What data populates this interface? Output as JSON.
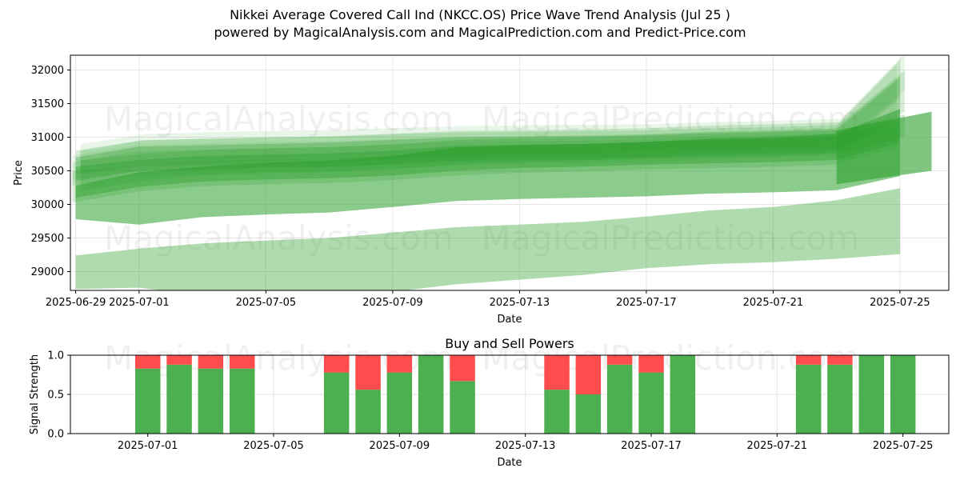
{
  "title": "Nikkei Average Covered Call Ind (NKCC.OS) Price Wave Trend Analysis (Jul 25 )",
  "subtitle": "powered by MagicalAnalysis.com and MagicalPrediction.com and Predict-Price.com",
  "watermarks": [
    "MagicalAnalysis.com",
    "MagicalPrediction.com"
  ],
  "colors": {
    "band": "#2ca02c",
    "buy": "#4caf50",
    "sell": "#ff4d4d"
  },
  "chart_data": [
    {
      "type": "area",
      "title": "",
      "xlabel": "Date",
      "ylabel": "Price",
      "ylim": [
        28720,
        32220
      ],
      "xlim": [
        "2025-06-28T20:00",
        "2025-07-26T13:00"
      ],
      "x_ticks": [
        "2025-06-29",
        "2025-07-01",
        "2025-07-05",
        "2025-07-09",
        "2025-07-13",
        "2025-07-17",
        "2025-07-21",
        "2025-07-25"
      ],
      "y_ticks": [
        29000,
        29500,
        30000,
        30500,
        31000,
        31500,
        32000
      ],
      "grid": true,
      "dates": [
        "2025-06-29",
        "2025-07-01",
        "2025-07-03",
        "2025-07-05",
        "2025-07-07",
        "2025-07-09",
        "2025-07-11",
        "2025-07-13",
        "2025-07-15",
        "2025-07-17",
        "2025-07-19",
        "2025-07-21",
        "2025-07-23",
        "2025-07-25"
      ],
      "bands": [
        {
          "lower": [
            28740,
            28760,
            28640,
            28600,
            28600,
            28700,
            28810,
            28880,
            28950,
            29050,
            29110,
            29140,
            29190,
            29260
          ],
          "upper": [
            29240,
            29340,
            29420,
            29460,
            29500,
            29580,
            29660,
            29700,
            29740,
            29820,
            29910,
            29960,
            30060,
            30240
          ],
          "opacity": 0.38
        },
        {
          "lower": [
            29780,
            29700,
            29810,
            29850,
            29880,
            29960,
            30050,
            30080,
            30100,
            30120,
            30160,
            30180,
            30210,
            30420
          ],
          "upper": [
            30280,
            30480,
            30560,
            30620,
            30650,
            30720,
            30850,
            30880,
            30900,
            30930,
            30980,
            31000,
            31050,
            31420
          ],
          "opacity": 0.55
        },
        {
          "lower": [
            30100,
            30260,
            30340,
            30370,
            30390,
            30430,
            30500,
            30540,
            30560,
            30590,
            30610,
            30630,
            30660,
            30920
          ],
          "upper": [
            30560,
            30660,
            30720,
            30740,
            30760,
            30800,
            30870,
            30890,
            30900,
            30930,
            30960,
            30980,
            31010,
            31240
          ],
          "opacity": 0.4
        },
        {
          "lower": [
            30350,
            30500,
            30520,
            30550,
            30560,
            30600,
            30650,
            30670,
            30680,
            30700,
            30740,
            30760,
            30790,
            31280
          ],
          "upper": [
            30700,
            30860,
            30880,
            30900,
            30920,
            30960,
            31000,
            31010,
            31020,
            31040,
            31080,
            31100,
            31130,
            31900
          ],
          "opacity": 0.3
        },
        {
          "lower": [
            30450,
            30560,
            30580,
            30600,
            30620,
            30660,
            30700,
            30710,
            30720,
            30740,
            30780,
            30800,
            30830,
            31600
          ],
          "upper": [
            30800,
            30950,
            30980,
            31000,
            31010,
            31040,
            31070,
            31080,
            31090,
            31100,
            31130,
            31150,
            31180,
            32150
          ],
          "opacity": 0.18
        }
      ],
      "tail_band": {
        "dates": [
          "2025-07-23",
          "2025-07-26"
        ],
        "lower": [
          30300,
          30500
        ],
        "upper": [
          31100,
          31380
        ],
        "opacity": 0.6
      }
    },
    {
      "type": "bar",
      "title": "Buy and Sell Powers",
      "xlabel": "Date",
      "ylabel": "Signal Strength",
      "ylim": [
        0,
        1
      ],
      "x_ticks": [
        "2025-07-01",
        "2025-07-05",
        "2025-07-09",
        "2025-07-13",
        "2025-07-17",
        "2025-07-21",
        "2025-07-25"
      ],
      "y_ticks": [
        0.0,
        0.5,
        1.0
      ],
      "grid": true,
      "series": [
        {
          "name": "Buy",
          "points": [
            [
              "2025-07-01",
              0.83
            ],
            [
              "2025-07-02",
              0.88
            ],
            [
              "2025-07-03",
              0.83
            ],
            [
              "2025-07-04",
              0.83
            ],
            [
              "2025-07-07",
              0.78
            ],
            [
              "2025-07-08",
              0.56
            ],
            [
              "2025-07-09",
              0.78
            ],
            [
              "2025-07-10",
              1.0
            ],
            [
              "2025-07-11",
              0.67
            ],
            [
              "2025-07-14",
              0.56
            ],
            [
              "2025-07-15",
              0.5
            ],
            [
              "2025-07-16",
              0.88
            ],
            [
              "2025-07-17",
              0.78
            ],
            [
              "2025-07-18",
              1.0
            ],
            [
              "2025-07-22",
              0.88
            ],
            [
              "2025-07-23",
              0.88
            ],
            [
              "2025-07-24",
              1.0
            ],
            [
              "2025-07-25",
              1.0
            ]
          ]
        },
        {
          "name": "Sell",
          "points": [
            [
              "2025-07-01",
              0.17
            ],
            [
              "2025-07-02",
              0.12
            ],
            [
              "2025-07-03",
              0.17
            ],
            [
              "2025-07-04",
              0.17
            ],
            [
              "2025-07-07",
              0.22
            ],
            [
              "2025-07-08",
              0.44
            ],
            [
              "2025-07-09",
              0.22
            ],
            [
              "2025-07-10",
              0.0
            ],
            [
              "2025-07-11",
              0.33
            ],
            [
              "2025-07-14",
              0.44
            ],
            [
              "2025-07-15",
              0.5
            ],
            [
              "2025-07-16",
              0.12
            ],
            [
              "2025-07-17",
              0.22
            ],
            [
              "2025-07-18",
              0.0
            ],
            [
              "2025-07-22",
              0.12
            ],
            [
              "2025-07-23",
              0.12
            ],
            [
              "2025-07-24",
              0.0
            ],
            [
              "2025-07-25",
              0.0
            ]
          ]
        }
      ]
    }
  ]
}
